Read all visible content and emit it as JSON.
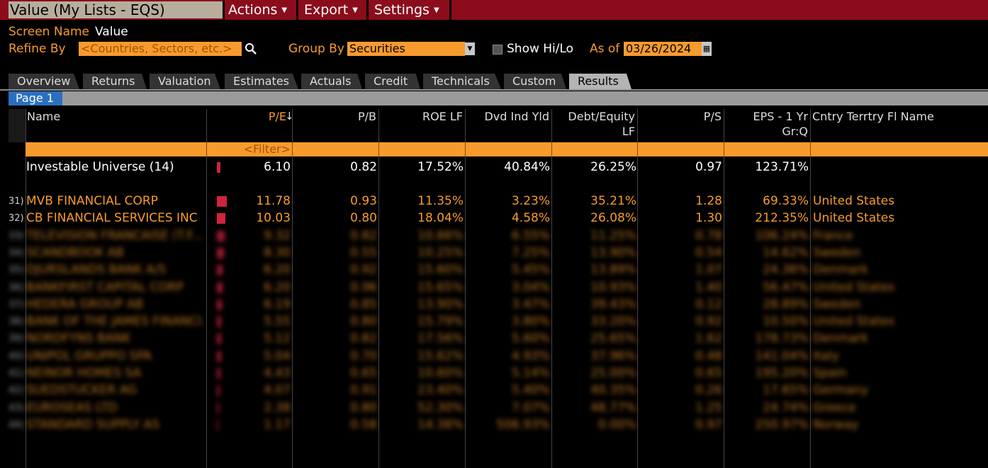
{
  "title": "Value (My Lists - EQS)",
  "menu": [
    {
      "label": "Actions"
    },
    {
      "label": "Export"
    },
    {
      "label": "Settings"
    }
  ],
  "screen": {
    "label": "Screen Name",
    "value": "Value"
  },
  "refine": {
    "label": "Refine By",
    "placeholder": "<Countries, Sectors, etc.>"
  },
  "groupby": {
    "label": "Group By",
    "value": "Securities"
  },
  "hilo": {
    "label": "Show Hi/Lo"
  },
  "asof": {
    "label": "As of",
    "value": "03/26/2024"
  },
  "tabs": [
    "Overview",
    "Returns",
    "Valuation",
    "Estimates",
    "Actuals",
    "Credit",
    "Technicals",
    "Custom",
    "Results"
  ],
  "active_tab": "Results",
  "page": "Page 1",
  "columns": {
    "name": "Name",
    "pe": "P/E",
    "pb": "P/B",
    "roe": "ROE LF",
    "dvd": "Dvd Ind Yld",
    "de1": "Debt/Equity",
    "de2": "LF",
    "ps": "P/S",
    "eps1": "EPS - 1 Yr",
    "eps2": "Gr:Q",
    "cntry": "Cntry Terrtry Fl Name"
  },
  "filter_text": "<Filter>",
  "universe": {
    "name": "Investable Universe (14)",
    "pe": "6.10",
    "pb": "0.82",
    "roe": "17.52%",
    "dvd": "40.84%",
    "de": "26.25%",
    "ps": "0.97",
    "eps": "123.71%",
    "bar": 0.35
  },
  "rows": [
    {
      "idx": "31)",
      "name": "MVB FINANCIAL CORP",
      "pe": "11.78",
      "pb": "0.93",
      "roe": "11.35%",
      "dvd": "3.23%",
      "de": "35.21%",
      "ps": "1.28",
      "eps": "69.33%",
      "cntry": "United States",
      "bar": 1.0,
      "blur": false
    },
    {
      "idx": "32)",
      "name": "CB FINANCIAL SERVICES INC",
      "pe": "10.03",
      "pb": "0.80",
      "roe": "18.04%",
      "dvd": "4.58%",
      "de": "26.08%",
      "ps": "1.30",
      "eps": "212.35%",
      "cntry": "United States",
      "bar": 0.85,
      "blur": false
    },
    {
      "idx": "33)",
      "name": "TELEVISION FRANCAISE (T.F...",
      "pe": "9.32",
      "pb": "0.82",
      "roe": "10.66%",
      "dvd": "6.55%",
      "de": "11.25%",
      "ps": "0.78",
      "eps": "106.24%",
      "cntry": "France",
      "bar": 0.75,
      "blur": true
    },
    {
      "idx": "34)",
      "name": "SCANDBOOK AB",
      "pe": "8.30",
      "pb": "0.55",
      "roe": "10.25%",
      "dvd": "7.25%",
      "de": "13.90%",
      "ps": "0.54",
      "eps": "14.62%",
      "cntry": "Sweden",
      "bar": 0.7,
      "blur": true
    },
    {
      "idx": "35)",
      "name": "DJURSLANDS BANK A/S",
      "pe": "6.20",
      "pb": "0.92",
      "roe": "15.60%",
      "dvd": "5.45%",
      "de": "13.89%",
      "ps": "1.07",
      "eps": "24.36%",
      "cntry": "Denmark",
      "bar": 0.55,
      "blur": true
    },
    {
      "idx": "36)",
      "name": "BANKFIRST CAPITAL CORP",
      "pe": "6.20",
      "pb": "0.96",
      "roe": "15.65%",
      "dvd": "3.04%",
      "de": "10.93%",
      "ps": "1.40",
      "eps": "56.47%",
      "cntry": "United States",
      "bar": 0.55,
      "blur": true
    },
    {
      "idx": "37)",
      "name": "HEDERA GROUP AB",
      "pe": "6.19",
      "pb": "0.85",
      "roe": "13.90%",
      "dvd": "3.47%",
      "de": "39.43%",
      "ps": "0.12",
      "eps": "28.89%",
      "cntry": "Sweden",
      "bar": 0.5,
      "blur": true
    },
    {
      "idx": "38)",
      "name": "BANK OF THE JAMES FINANCI...",
      "pe": "5.55",
      "pb": "0.80",
      "roe": "15.79%",
      "dvd": "3.80%",
      "de": "33.20%",
      "ps": "0.92",
      "eps": "10.50%",
      "cntry": "United States",
      "bar": 0.45,
      "blur": true
    },
    {
      "idx": "39)",
      "name": "NORDFYNS BANK",
      "pe": "5.12",
      "pb": "0.82",
      "roe": "17.56%",
      "dvd": "5.60%",
      "de": "25.65%",
      "ps": "1.62",
      "eps": "178.73%",
      "cntry": "Denmark",
      "bar": 0.4,
      "blur": true
    },
    {
      "idx": "40)",
      "name": "UNIPOL GRUPPO SPA",
      "pe": "5.04",
      "pb": "0.70",
      "roe": "15.62%",
      "dvd": "4.93%",
      "de": "37.96%",
      "ps": "0.48",
      "eps": "141.04%",
      "cntry": "Italy",
      "bar": 0.4,
      "blur": true
    },
    {
      "idx": "41)",
      "name": "NEINOR HOMES SA",
      "pe": "4.43",
      "pb": "0.65",
      "roe": "10.60%",
      "dvd": "5.14%",
      "de": "25.00%",
      "ps": "0.65",
      "eps": "195.20%",
      "cntry": "Spain",
      "bar": 0.35,
      "blur": true
    },
    {
      "idx": "42)",
      "name": "SUEDSTUCKER AG",
      "pe": "4.07",
      "pb": "0.91",
      "roe": "23.40%",
      "dvd": "5.40%",
      "de": "40.35%",
      "ps": "0.26",
      "eps": "17.65%",
      "cntry": "Germany",
      "bar": 0.3,
      "blur": true
    },
    {
      "idx": "43)",
      "name": "EUROSEAS LTD",
      "pe": "2.38",
      "pb": "0.80",
      "roe": "52.30%",
      "dvd": "7.07%",
      "de": "48.77%",
      "ps": "1.25",
      "eps": "24.74%",
      "cntry": "Greece",
      "bar": 0.2,
      "blur": true
    },
    {
      "idx": "44)",
      "name": "STANDARD SUPPLY AS",
      "pe": "1.17",
      "pb": "0.58",
      "roe": "14.38%",
      "dvd": "506.93%",
      "de": "0.00%",
      "ps": "0.97",
      "eps": "250.97%",
      "cntry": "Norway",
      "bar": 0.08,
      "blur": true
    }
  ]
}
